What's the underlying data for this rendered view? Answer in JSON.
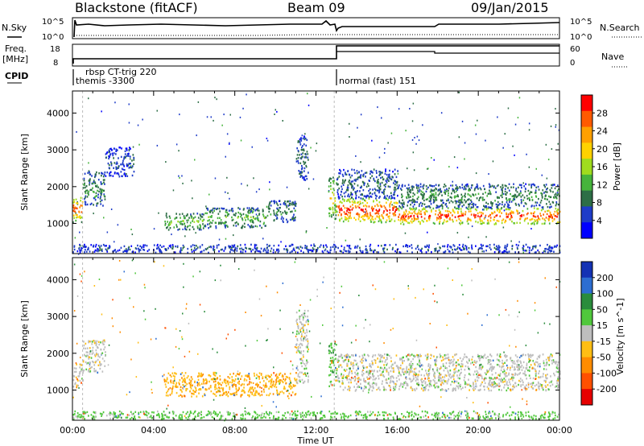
{
  "header": {
    "station": "Blackstone (fitACF)",
    "beam": "Beam 09",
    "date": "09/Jan/2015"
  },
  "summary": {
    "left_labels": {
      "nsky": "N.Sky",
      "freq": "Freq.",
      "freq_unit": "[MHz]",
      "cpid": "CPID"
    },
    "right_labels": {
      "nsearch": "N.Search",
      "nave": "Nave"
    },
    "noise_ticks_left": [
      "10^5",
      "10^0"
    ],
    "noise_ticks_right": [
      "10^5",
      "10^0"
    ],
    "freq_ticks": [
      "18",
      "8"
    ],
    "nave_ticks": [
      "60",
      "0"
    ],
    "cpid_text": [
      {
        "label": "rbsp CT-trig  220",
        "time_hr": 1.0
      },
      {
        "label": "themis -3300",
        "time_hr": 0.2
      },
      {
        "label": "normal (fast)  151",
        "time_hr": 13.0
      }
    ]
  },
  "chart_data": [
    {
      "type": "heatmap",
      "panel": "power",
      "xlabel": "",
      "ylabel": "Slant Range [km]",
      "xlim_hr": [
        0,
        24
      ],
      "ylim_km": [
        180,
        4600
      ],
      "yticks": [
        "1000",
        "2000",
        "3000",
        "4000"
      ],
      "colorbar": {
        "label": "Power [dB]",
        "ticks": [
          "4",
          "8",
          "12",
          "16",
          "20",
          "24",
          "28"
        ],
        "colors": [
          "#0000ff",
          "#1e3cc8",
          "#2d6e46",
          "#46b43c",
          "#a0dc1e",
          "#ffd200",
          "#ffa000",
          "#ff5a00",
          "#ff0000"
        ]
      },
      "regions": [
        {
          "t0": 0.0,
          "t1": 0.5,
          "r0": 1050,
          "r1": 1750,
          "level": 26
        },
        {
          "t0": 0.5,
          "t1": 1.6,
          "r0": 1500,
          "r1": 2450,
          "level": 10
        },
        {
          "t0": 1.6,
          "t1": 3.0,
          "r0": 2300,
          "r1": 3100,
          "level": 6
        },
        {
          "t0": 4.5,
          "t1": 6.5,
          "r0": 850,
          "r1": 1300,
          "level": 14
        },
        {
          "t0": 6.5,
          "t1": 9.5,
          "r0": 900,
          "r1": 1450,
          "level": 12
        },
        {
          "t0": 9.5,
          "t1": 11.0,
          "r0": 1050,
          "r1": 1650,
          "level": 10
        },
        {
          "t0": 11.0,
          "t1": 11.6,
          "r0": 2200,
          "r1": 3400,
          "level": 8
        },
        {
          "t0": 12.6,
          "t1": 13.0,
          "r0": 1100,
          "r1": 2300,
          "level": 18
        },
        {
          "t0": 13.0,
          "t1": 16.0,
          "r0": 1050,
          "r1": 1700,
          "level": 28
        },
        {
          "t0": 13.0,
          "t1": 16.0,
          "r0": 1700,
          "r1": 2500,
          "level": 8
        },
        {
          "t0": 16.0,
          "t1": 24.0,
          "r0": 1000,
          "r1": 1450,
          "level": 27
        },
        {
          "t0": 16.0,
          "t1": 24.0,
          "r0": 1450,
          "r1": 2100,
          "level": 10
        },
        {
          "t0": 0.0,
          "t1": 24.0,
          "r0": 230,
          "r1": 450,
          "level": 6
        }
      ]
    },
    {
      "type": "heatmap",
      "panel": "velocity",
      "xlabel": "Time UT",
      "ylabel": "Slant Range [km]",
      "xlim_hr": [
        0,
        24
      ],
      "ylim_km": [
        180,
        4600
      ],
      "xticks": [
        "00:00",
        "04:00",
        "08:00",
        "12:00",
        "16:00",
        "20:00",
        "00:00"
      ],
      "yticks": [
        "1000",
        "2000",
        "3000",
        "4000"
      ],
      "colorbar": {
        "label": "Velocity [m s^-1]",
        "ticks": [
          "200",
          "100",
          "50",
          "15",
          "-15",
          "-50",
          "-100",
          "-200"
        ],
        "colors": [
          "#1432b4",
          "#2d6ed2",
          "#2a8c3c",
          "#50c83c",
          "#bebebe",
          "#ffbe14",
          "#ff8c00",
          "#ff5000",
          "#e60000"
        ]
      },
      "regions": [
        {
          "t0": 0.0,
          "t1": 0.5,
          "r0": 1100,
          "r1": 1750,
          "level": 0
        },
        {
          "t0": 0.5,
          "t1": 1.6,
          "r0": 1500,
          "r1": 2400,
          "level": 0
        },
        {
          "t0": 4.5,
          "t1": 11.0,
          "r0": 850,
          "r1": 1500,
          "level": -40
        },
        {
          "t0": 11.0,
          "t1": 11.6,
          "r0": 1200,
          "r1": 3200,
          "level": 0
        },
        {
          "t0": 12.6,
          "t1": 13.0,
          "r0": 1100,
          "r1": 2300,
          "level": 40
        },
        {
          "t0": 13.0,
          "t1": 24.0,
          "r0": 1000,
          "r1": 2000,
          "level": 0
        },
        {
          "t0": 0.0,
          "t1": 24.0,
          "r0": 230,
          "r1": 450,
          "level": 30
        }
      ]
    }
  ]
}
